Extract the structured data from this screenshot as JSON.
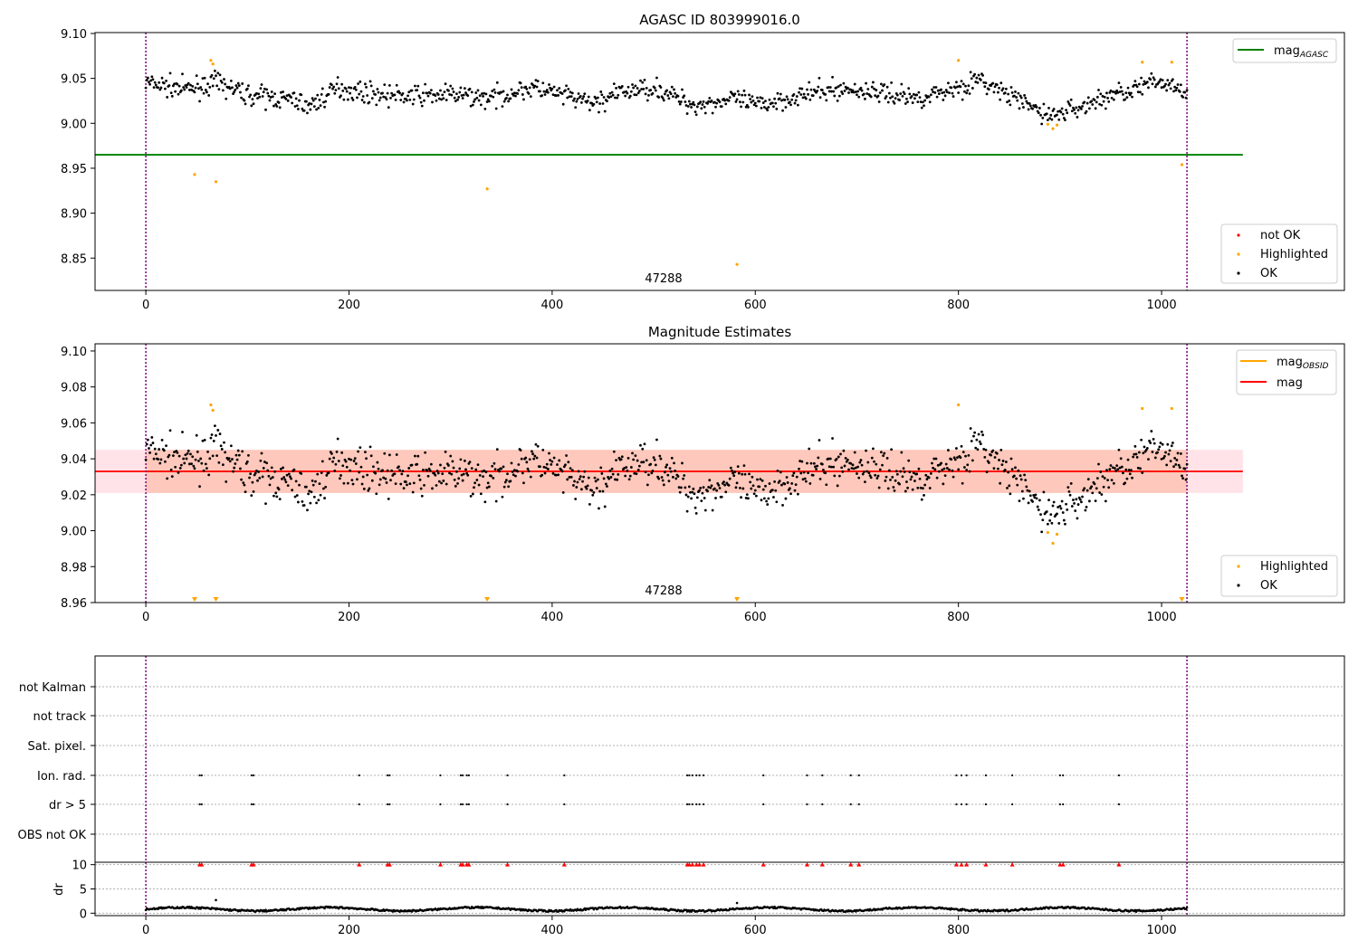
{
  "chart_data": [
    {
      "type": "scatter",
      "title": "AGASC ID 803999016.0",
      "xlabel": "",
      "ylabel": "",
      "xlim": [
        -50,
        1180
      ],
      "ylim": [
        8.814,
        9.101
      ],
      "x_ticks": [
        "0",
        "200",
        "400",
        "600",
        "800",
        "1000"
      ],
      "y_ticks": [
        "8.85",
        "8.90",
        "8.95",
        "9.00",
        "9.05",
        "9.10"
      ],
      "obsid_label": "47288",
      "obs_bounds": [
        0,
        1025
      ],
      "mag_agasc": 8.965,
      "legend_top": {
        "placement": "upper right",
        "entries": [
          {
            "label": "mag",
            "subscript": "AGASC",
            "color": "#008000"
          }
        ]
      },
      "legend_bottom": {
        "placement": "lower right",
        "entries": [
          {
            "label": "not OK",
            "color": "#ff0000"
          },
          {
            "label": "Highlighted",
            "color": "#ffa500"
          },
          {
            "label": "OK",
            "color": "#000000"
          }
        ]
      },
      "highlighted_points": [
        [
          48,
          8.943
        ],
        [
          64,
          9.07
        ],
        [
          66,
          9.066
        ],
        [
          69,
          8.935
        ],
        [
          336,
          8.927
        ],
        [
          582,
          8.843
        ],
        [
          800,
          9.07
        ],
        [
          888,
          8.999
        ],
        [
          893,
          8.994
        ],
        [
          897,
          8.998
        ],
        [
          981,
          9.068
        ],
        [
          1010,
          9.068
        ],
        [
          1020,
          8.954
        ]
      ],
      "ok_series_seed": 7,
      "ok_trend": [
        [
          0,
          9.045
        ],
        [
          40,
          9.038
        ],
        [
          70,
          9.045
        ],
        [
          100,
          9.032
        ],
        [
          150,
          9.025
        ],
        [
          160,
          9.018
        ],
        [
          190,
          9.04
        ],
        [
          210,
          9.035
        ],
        [
          250,
          9.03
        ],
        [
          300,
          9.032
        ],
        [
          340,
          9.028
        ],
        [
          380,
          9.04
        ],
        [
          420,
          9.028
        ],
        [
          440,
          9.022
        ],
        [
          470,
          9.035
        ],
        [
          500,
          9.04
        ],
        [
          540,
          9.02
        ],
        [
          580,
          9.027
        ],
        [
          600,
          9.02
        ],
        [
          640,
          9.03
        ],
        [
          680,
          9.038
        ],
        [
          720,
          9.035
        ],
        [
          760,
          9.028
        ],
        [
          800,
          9.04
        ],
        [
          820,
          9.048
        ],
        [
          860,
          9.025
        ],
        [
          890,
          9.008
        ],
        [
          920,
          9.018
        ],
        [
          960,
          9.035
        ],
        [
          1000,
          9.046
        ],
        [
          1025,
          9.038
        ]
      ]
    },
    {
      "type": "scatter",
      "title": "Magnitude Estimates",
      "xlabel": "",
      "ylabel": "",
      "xlim": [
        -50,
        1180
      ],
      "ylim": [
        8.96,
        9.104
      ],
      "x_ticks": [
        "0",
        "200",
        "400",
        "600",
        "800",
        "1000"
      ],
      "y_ticks": [
        "8.96",
        "8.98",
        "9.00",
        "9.02",
        "9.04",
        "9.06",
        "9.08",
        "9.10"
      ],
      "obsid_label": "47288",
      "obs_bounds": [
        0,
        1025
      ],
      "mag": 9.033,
      "mag_obsid": 9.033,
      "band": [
        9.021,
        9.045
      ],
      "legend_top": {
        "placement": "upper right",
        "entries": [
          {
            "label": "mag",
            "subscript": "OBSID",
            "color": "#ffa500"
          },
          {
            "label": "mag",
            "color": "#ff0000"
          }
        ]
      },
      "legend_bottom": {
        "placement": "lower right",
        "entries": [
          {
            "label": "Highlighted",
            "color": "#ffa500"
          },
          {
            "label": "OK",
            "color": "#000000"
          }
        ]
      },
      "highlighted_points": [
        [
          64,
          9.07
        ],
        [
          66,
          9.067
        ],
        [
          800,
          9.07
        ],
        [
          888,
          8.999
        ],
        [
          893,
          8.993
        ],
        [
          897,
          8.998
        ],
        [
          981,
          9.068
        ],
        [
          1010,
          9.068
        ]
      ],
      "clipped_markers_x": [
        48,
        69,
        336,
        582,
        1020
      ]
    },
    {
      "type": "scatter",
      "title": "",
      "xlabel": "",
      "ylabel": "",
      "xlim": [
        -50,
        1180
      ],
      "flag_rows": [
        "not Kalman",
        "not track",
        "Sat. pixel.",
        "Ion. rad.",
        "dr > 5",
        "OBS not OK"
      ],
      "flag_x": [
        53,
        55,
        104,
        106,
        210,
        238,
        240,
        290,
        310,
        312,
        316,
        318,
        356,
        412,
        533,
        535,
        538,
        542,
        545,
        549,
        608,
        651,
        666,
        694,
        702,
        798,
        803,
        808,
        827,
        853,
        900,
        903,
        958
      ],
      "obs_bounds": [
        0,
        1025
      ]
    },
    {
      "type": "line",
      "title": "",
      "xlabel": "",
      "ylabel": "dr",
      "xlim": [
        -50,
        1180
      ],
      "ylim": [
        -0.5,
        10.5
      ],
      "x_ticks": [
        "0",
        "200",
        "400",
        "600",
        "800",
        "1000"
      ],
      "y_ticks": [
        "0",
        "5",
        "10"
      ],
      "dr_threshold": 10,
      "outliers": [
        [
          69,
          2.7
        ],
        [
          582,
          2.1
        ]
      ],
      "obs_bounds": [
        0,
        1025
      ]
    }
  ]
}
